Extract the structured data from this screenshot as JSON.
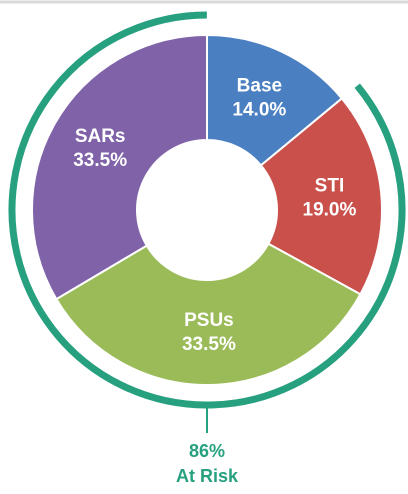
{
  "chart_data": {
    "type": "donut",
    "categories": [
      "Base",
      "STI",
      "PSUs",
      "SARs"
    ],
    "values": [
      14,
      19,
      33.5,
      33.5
    ],
    "value_labels": [
      "14.0%",
      "19.0%",
      "33.5%",
      "33.5%"
    ],
    "colors": [
      "#4a7fc1",
      "#c9504b",
      "#9bbb59",
      "#7f62a8"
    ],
    "annotation": {
      "value": 86,
      "label": "86%",
      "text": "At Risk",
      "color": "#27a07f"
    }
  }
}
